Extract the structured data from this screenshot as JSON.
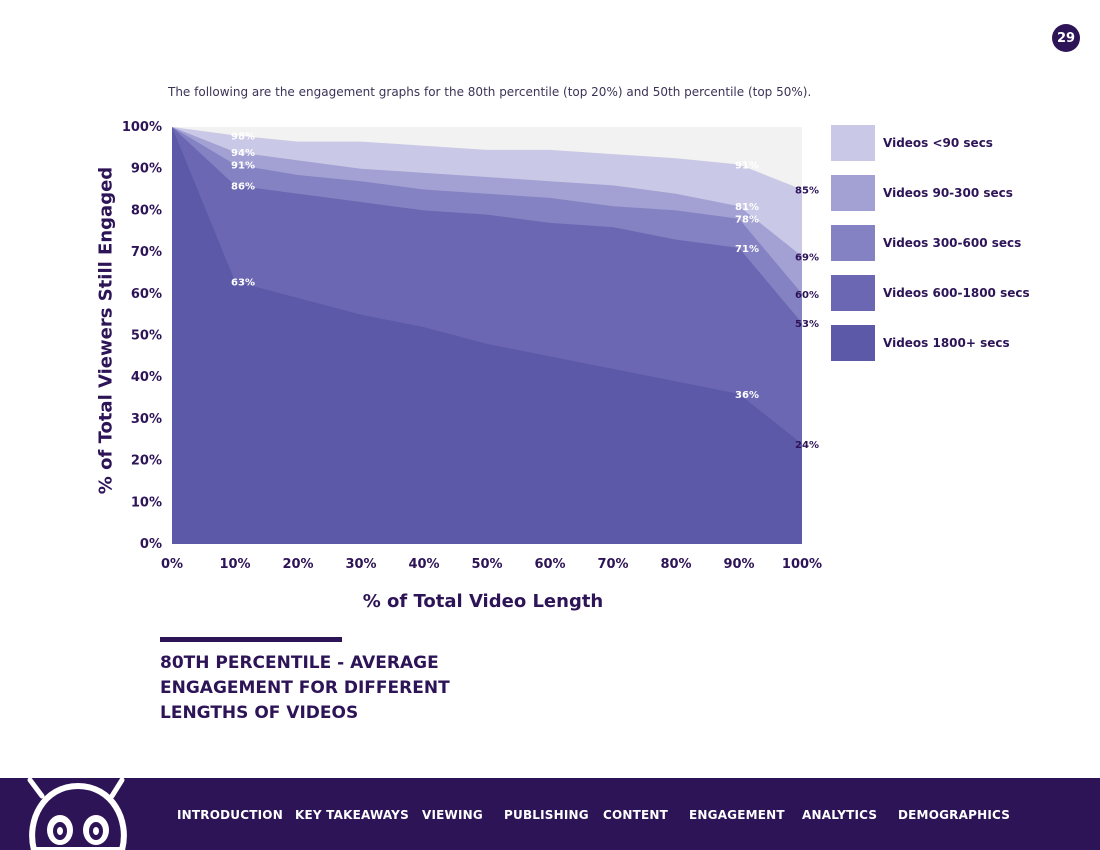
{
  "page_number": "29",
  "intro_text": "The following are the engagement graphs for the 80th percentile (top 20%) and 50th percentile (top 50%).",
  "chart_title": "80TH PERCENTILE - AVERAGE ENGAGEMENT FOR DIFFERENT LENGTHS OF VIDEOS",
  "chart_data": {
    "type": "area",
    "title": "80TH PERCENTILE - AVERAGE ENGAGEMENT FOR DIFFERENT LENGTHS OF VIDEOS",
    "xlabel": "% of Total Video Length",
    "ylabel": "% of Total Viewers Still Engaged",
    "x": [
      0,
      10,
      20,
      30,
      40,
      50,
      60,
      70,
      80,
      90,
      100
    ],
    "xlim": [
      0,
      100
    ],
    "ylim": [
      0,
      100
    ],
    "x_ticks": [
      "0%",
      "10%",
      "20%",
      "30%",
      "40%",
      "50%",
      "60%",
      "70%",
      "80%",
      "90%",
      "100%"
    ],
    "y_ticks": [
      "0%",
      "10%",
      "20%",
      "30%",
      "40%",
      "50%",
      "60%",
      "70%",
      "80%",
      "90%",
      "100%"
    ],
    "series": [
      {
        "name": "Videos <90 secs",
        "color": "#c9c8e6",
        "values": [
          100,
          98,
          96.5,
          96.5,
          95.5,
          94.5,
          94.5,
          93.5,
          92.5,
          91,
          85
        ]
      },
      {
        "name": "Videos 90-300 secs",
        "color": "#a3a1d3",
        "values": [
          100,
          94,
          92,
          90,
          89,
          88,
          87,
          86,
          84,
          81,
          69
        ]
      },
      {
        "name": "Videos 300-600 secs",
        "color": "#8582c3",
        "values": [
          100,
          91,
          88.5,
          87,
          85,
          84,
          83,
          81,
          80,
          78,
          60
        ]
      },
      {
        "name": "Videos 600-1800 secs",
        "color": "#6b67b2",
        "values": [
          100,
          86,
          84,
          82,
          80,
          79,
          77,
          76,
          73,
          71,
          53
        ]
      },
      {
        "name": "Videos 1800+ secs",
        "color": "#5c5aa8",
        "values": [
          100,
          63,
          59,
          55,
          52,
          48,
          45,
          42,
          39,
          36,
          24
        ]
      }
    ],
    "data_labels": [
      {
        "x": 10,
        "y": 98,
        "text": "98%"
      },
      {
        "x": 10,
        "y": 94,
        "text": "94%"
      },
      {
        "x": 10,
        "y": 91,
        "text": "91%"
      },
      {
        "x": 10,
        "y": 86,
        "text": "86%"
      },
      {
        "x": 10,
        "y": 63,
        "text": "63%"
      },
      {
        "x": 90,
        "y": 91,
        "text": "91%"
      },
      {
        "x": 90,
        "y": 81,
        "text": "81%"
      },
      {
        "x": 90,
        "y": 78,
        "text": "78%"
      },
      {
        "x": 90,
        "y": 71,
        "text": "71%"
      },
      {
        "x": 90,
        "y": 36,
        "text": "36%"
      },
      {
        "x": 100,
        "y": 85,
        "text": "85%"
      },
      {
        "x": 100,
        "y": 69,
        "text": "69%"
      },
      {
        "x": 100,
        "y": 60,
        "text": "60%"
      },
      {
        "x": 100,
        "y": 53,
        "text": "53%"
      },
      {
        "x": 100,
        "y": 24,
        "text": "24%"
      }
    ],
    "legend_position": "right",
    "grid": false
  },
  "legend": [
    {
      "label": "Videos <90 secs",
      "color": "#c9c8e6"
    },
    {
      "label": "Videos 90-300 secs",
      "color": "#a3a1d3"
    },
    {
      "label": "Videos 300-600 secs",
      "color": "#8582c3"
    },
    {
      "label": "Videos 600-1800 secs",
      "color": "#6b67b2"
    },
    {
      "label": "Videos 1800+ secs",
      "color": "#5c5aa8"
    }
  ],
  "nav": {
    "items": [
      "INTRODUCTION",
      "KEY TAKEAWAYS",
      "VIEWING",
      "PUBLISHING",
      "CONTENT",
      "ENGAGEMENT",
      "ANALYTICS",
      "DEMOGRAPHICS"
    ]
  },
  "colors": {
    "brand_dark": "#2d1457",
    "plot_background": "#f2f2f2"
  }
}
